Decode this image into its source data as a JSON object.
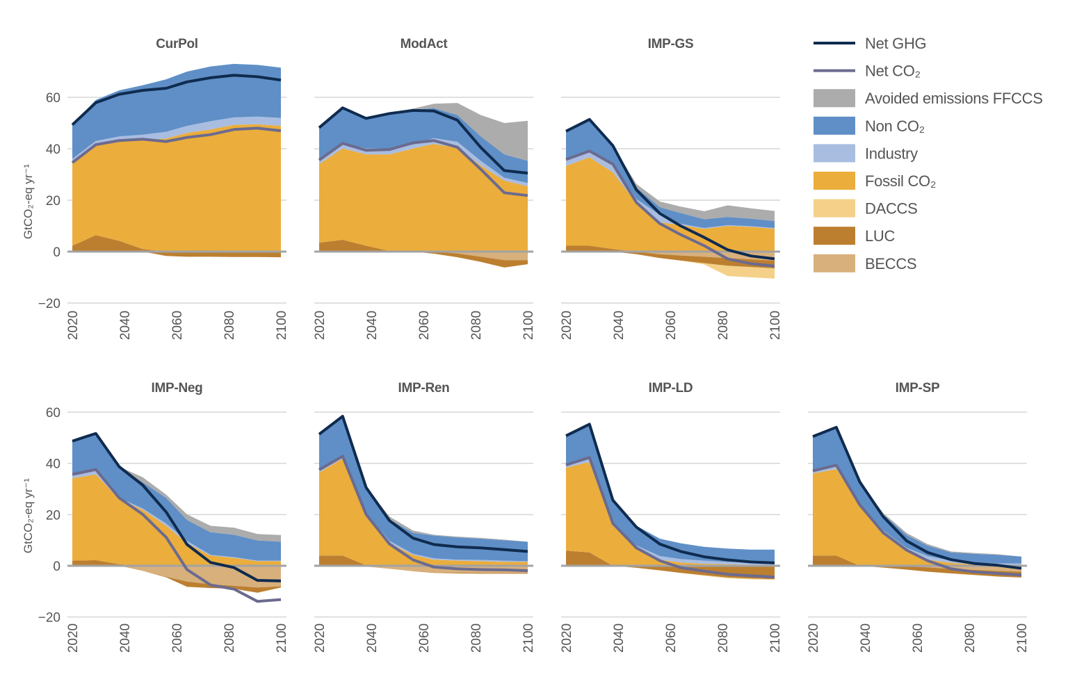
{
  "colors": {
    "Net GHG": "#0f2b4f",
    "Net CO₂": "#6b6b8f",
    "Avoided emissions FFCCS": "#acacac",
    "Non CO₂": "#5f8fc6",
    "Industry": "#a9bde1",
    "Fossil CO₂": "#ebad3c",
    "DACCS": "#f4d088",
    "LUC": "#bc7f30",
    "BECCS": "#d8b07c",
    "grid": "#d6d6d6",
    "zero": "#a3a3a3"
  },
  "legend": {
    "items": [
      {
        "label": "Net GHG",
        "kind": "line"
      },
      {
        "label": "Net CO₂",
        "kind": "line"
      },
      {
        "label": "Avoided emissions FFCCS",
        "kind": "box"
      },
      {
        "label": "Non CO₂",
        "kind": "box"
      },
      {
        "label": "Industry",
        "kind": "box"
      },
      {
        "label": "Fossil CO₂",
        "kind": "box"
      },
      {
        "label": "DACCS",
        "kind": "box"
      },
      {
        "label": "LUC",
        "kind": "box"
      },
      {
        "label": "BECCS",
        "kind": "box"
      }
    ]
  },
  "axes": {
    "ylabel": "GtCO₂-eq yr⁻¹",
    "yticks": [
      {
        "value": 60,
        "label": "60"
      },
      {
        "value": 40,
        "label": "40"
      },
      {
        "value": 20,
        "label": "20"
      },
      {
        "value": 0,
        "label": "0"
      },
      {
        "value": -20,
        "label": "−20"
      }
    ],
    "xticks": [
      {
        "value": 2020,
        "label": "2020"
      },
      {
        "value": 2040,
        "label": "2040"
      },
      {
        "value": 2060,
        "label": "2060"
      },
      {
        "value": 2080,
        "label": "2080"
      },
      {
        "value": 2100,
        "label": "2100"
      }
    ],
    "xlim": [
      2020,
      2100
    ],
    "ylim": [
      -20,
      75
    ],
    "grid": true
  },
  "chart_data": [
    {
      "type": "area",
      "title": "CurPol",
      "x": [
        2020,
        2029,
        2038,
        2047,
        2056,
        2064,
        2073,
        2082,
        2091,
        2100
      ],
      "series": {
        "LUC": [
          2.3,
          6.4,
          4.2,
          1,
          -1.7,
          -2,
          -2,
          -2.1,
          -2.1,
          -2.2
        ],
        "Fossil CO₂": [
          32.1,
          35.2,
          38.8,
          42.3,
          44,
          46.2,
          47.5,
          49.3,
          49.5,
          48.9
        ],
        "Industry": [
          1.6,
          1.4,
          1.8,
          2.2,
          2.6,
          2.7,
          3.2,
          2.9,
          3,
          3.1
        ],
        "Non CO₂": [
          13.3,
          16,
          17.9,
          19.2,
          20.4,
          21.1,
          21.3,
          20.8,
          20.1,
          19.5
        ],
        "Net GHG": [
          49.3,
          57.9,
          61.2,
          62.7,
          63.5,
          66,
          67.6,
          68.6,
          68,
          66.7
        ],
        "Net CO₂": [
          34.6,
          41.6,
          43.2,
          43.7,
          42.8,
          44.4,
          45.5,
          47.5,
          48,
          47
        ]
      }
    },
    {
      "type": "area",
      "title": "ModAct",
      "x": [
        2020,
        2029,
        2038,
        2047,
        2056,
        2064,
        2073,
        2082,
        2091,
        2100
      ],
      "series": {
        "LUC": [
          3.5,
          4.6,
          2.3,
          0.2,
          0,
          -0.8,
          -1.5,
          -2,
          -2.9,
          -1.6
        ],
        "BECCS": [
          0,
          0,
          0,
          0,
          0,
          0,
          -0.7,
          -2,
          -3.3,
          -3.3
        ],
        "Fossil CO₂": [
          30.5,
          35.5,
          35.5,
          37.6,
          40.1,
          41.9,
          40.3,
          33.5,
          27.6,
          25.4
        ],
        "Industry": [
          1.3,
          2,
          2.3,
          2.3,
          1.5,
          2.2,
          2.4,
          1.8,
          1.1,
          1.3
        ],
        "Non CO₂": [
          12.9,
          13.8,
          11.7,
          13.6,
          13.6,
          11.7,
          10.4,
          9.5,
          9.1,
          8.6
        ],
        "Avoided emissions FFCCS": [
          0,
          0,
          0,
          0,
          0.4,
          1.7,
          4.7,
          8.3,
          12.2,
          15.6
        ],
        "Net GHG": [
          48.2,
          55.9,
          51.8,
          53.7,
          54.9,
          54.7,
          51.1,
          40.5,
          31.5,
          30.5
        ],
        "Net CO₂": [
          35.6,
          42.1,
          39.4,
          39.7,
          42.3,
          43.2,
          40.6,
          32,
          22.9,
          21.8
        ]
      }
    },
    {
      "type": "area",
      "title": "IMP-GS",
      "x": [
        2020,
        2029,
        2038,
        2047,
        2056,
        2064,
        2073,
        2082,
        2091,
        2100
      ],
      "series": {
        "LUC": [
          2.3,
          2.3,
          1,
          -1,
          -1.5,
          -2,
          -2.5,
          -3,
          -3,
          -3
        ],
        "BECCS": [
          0,
          0,
          0,
          0,
          -1,
          -1.5,
          -2,
          -2.5,
          -3,
          -3.5
        ],
        "DACCS": [
          0,
          0,
          0,
          0,
          0,
          0,
          -0.5,
          -4,
          -4,
          -4
        ],
        "Fossil CO₂": [
          31,
          34.4,
          29.8,
          18.8,
          11.4,
          10.3,
          8.9,
          10,
          9.6,
          8.9
        ],
        "Industry": [
          2.5,
          2.7,
          3.2,
          1.6,
          2.9,
          0.5,
          0.3,
          0.3,
          0.3,
          0.3
        ],
        "Non CO₂": [
          11,
          12,
          7.2,
          4.5,
          3,
          4.2,
          3.4,
          3.2,
          2.9,
          2.7
        ],
        "Avoided emissions FFCCS": [
          0,
          0,
          0,
          1.4,
          2.2,
          2.5,
          3.1,
          4.5,
          4,
          3.9
        ],
        "Net GHG": [
          46.8,
          51.4,
          41.2,
          24,
          14.8,
          10,
          5.5,
          0.7,
          -1.7,
          -2.8
        ],
        "Net CO₂": [
          35.8,
          39.1,
          34,
          19.1,
          10.9,
          6.6,
          2.3,
          -2.8,
          -4.7,
          -5.6
        ]
      }
    },
    {
      "type": "area",
      "title": "IMP-Neg",
      "x": [
        2020,
        2029,
        2038,
        2047,
        2056,
        2064,
        2073,
        2082,
        2091,
        2100
      ],
      "series": {
        "LUC": [
          2,
          2.2,
          0.6,
          0,
          -0.2,
          -2,
          -1.5,
          -1.2,
          -2,
          -0.5
        ],
        "BECCS": [
          0,
          0,
          0,
          -2,
          -4.3,
          -6.2,
          -7.2,
          -7.8,
          -8.5,
          -8
        ],
        "Fossil CO₂": [
          32.2,
          33.5,
          25.4,
          21.9,
          15.6,
          8.8,
          4,
          3.1,
          1.8,
          1.8
        ],
        "Industry": [
          1.8,
          1.7,
          0.5,
          0.5,
          0.9,
          0.9,
          0.3,
          0.3,
          0.2,
          0.2
        ],
        "Non CO₂": [
          12.7,
          14.3,
          12.2,
          10.2,
          10,
          8.2,
          8.8,
          8.7,
          7.9,
          7.4
        ],
        "Avoided emissions FFCCS": [
          0,
          0,
          0,
          2,
          1.3,
          2.2,
          2.5,
          2.8,
          2.5,
          2.6
        ],
        "Net GHG": [
          48.7,
          51.7,
          38.7,
          31.5,
          21,
          8.3,
          1.3,
          -0.7,
          -5.7,
          -5.9
        ],
        "Net CO₂": [
          35.7,
          37.6,
          26.5,
          20.1,
          11.1,
          -1.5,
          -7.5,
          -9.1,
          -13.9,
          -13.2
        ]
      }
    },
    {
      "type": "area",
      "title": "IMP-Ren",
      "x": [
        2020,
        2029,
        2038,
        2047,
        2056,
        2064,
        2073,
        2082,
        2091,
        2100
      ],
      "series": {
        "LUC": [
          4,
          4,
          0.2,
          0,
          -0.1,
          -0.2,
          -0.3,
          -0.3,
          -0.3,
          -0.3
        ],
        "BECCS": [
          0,
          0,
          -0.3,
          -1.2,
          -2,
          -2.6,
          -2.7,
          -2.8,
          -2.8,
          -2.8
        ],
        "Fossil CO₂": [
          32.4,
          37.9,
          19.9,
          8.8,
          4.3,
          2.4,
          2,
          1.8,
          1.5,
          1.5
        ],
        "Industry": [
          1,
          0.9,
          0.5,
          0.9,
          0.4,
          0.5,
          0.4,
          0.5,
          0.5,
          0.3
        ],
        "Non CO₂": [
          14,
          15.6,
          10,
          8.4,
          8.2,
          8.9,
          8.7,
          8.3,
          8,
          7.6
        ],
        "Avoided emissions FFCCS": [
          0,
          0,
          0,
          1.1,
          0.9,
          0.3,
          0.3,
          0.3,
          0.2,
          0
        ],
        "Net GHG": [
          51.4,
          58.4,
          30.6,
          17.6,
          10.8,
          8.3,
          7.4,
          7,
          6.3,
          5.6
        ],
        "Net CO₂": [
          37.5,
          42.8,
          20.1,
          8.5,
          2.3,
          -0.5,
          -1.2,
          -1.5,
          -1.6,
          -1.9
        ]
      }
    },
    {
      "type": "area",
      "title": "IMP-LD",
      "x": [
        2020,
        2029,
        2038,
        2047,
        2056,
        2064,
        2073,
        2082,
        2091,
        2100
      ],
      "series": {
        "LUC": [
          5.9,
          5.2,
          0,
          -0.8,
          -1.8,
          -2.8,
          -3.7,
          -4.6,
          -5,
          -5.2
        ],
        "DACCS": [
          0,
          0,
          0,
          0,
          0,
          0,
          -0.2,
          -0.3,
          -0.3,
          -0.3
        ],
        "Fossil CO₂": [
          32.4,
          35.3,
          15.6,
          7,
          2.4,
          1.3,
          0.8,
          0.6,
          0.4,
          0.2
        ],
        "Industry": [
          0.9,
          1.4,
          0.9,
          0.9,
          1.4,
          1.3,
          1.2,
          0.9,
          0.9,
          0.9
        ],
        "Non CO₂": [
          11.6,
          13.4,
          9.1,
          7.7,
          6.8,
          6.2,
          5.4,
          5.2,
          5,
          5.2
        ],
        "Net GHG": [
          50.8,
          55.3,
          25.6,
          15.1,
          8.5,
          5.6,
          3.5,
          2.3,
          1.5,
          1.1
        ],
        "Net CO₂": [
          39.4,
          42.3,
          16.5,
          7,
          2,
          -0.7,
          -2.1,
          -3.3,
          -3.9,
          -4.4
        ]
      }
    },
    {
      "type": "area",
      "title": "IMP-SP",
      "x": [
        2020,
        2029,
        2038,
        2047,
        2056,
        2064,
        2073,
        2082,
        2091,
        2100
      ],
      "series": {
        "LUC": [
          4,
          4,
          0,
          -0.7,
          -1.3,
          -1.7,
          -1.8,
          -2,
          -2.2,
          -2.3
        ],
        "BECCS": [
          0,
          0,
          0,
          0,
          -0.2,
          -0.6,
          -1.2,
          -1.6,
          -2,
          -2.3
        ],
        "Fossil CO₂": [
          32,
          33.8,
          23.8,
          13.1,
          6.3,
          2.4,
          1.1,
          0.6,
          0.4,
          0.4
        ],
        "Industry": [
          0.9,
          0.9,
          0.4,
          0.7,
          0.7,
          1.4,
          0.9,
          0.7,
          0.5,
          0.5
        ],
        "Non CO₂": [
          13.6,
          15.4,
          8.6,
          6.3,
          5,
          4.1,
          3.2,
          3.4,
          3.4,
          2.7
        ],
        "Avoided emissions FFCCS": [
          0,
          0,
          0,
          0.5,
          0.8,
          0.6,
          0.4,
          0.3,
          0.2,
          0
        ],
        "Net GHG": [
          50.5,
          54.1,
          32.8,
          19.2,
          9.7,
          5.2,
          2.4,
          0.9,
          0.2,
          -1
        ],
        "Net CO₂": [
          37.1,
          39.3,
          23.8,
          12.9,
          6.1,
          2,
          -1.2,
          -2.4,
          -3,
          -3.6
        ]
      }
    }
  ]
}
